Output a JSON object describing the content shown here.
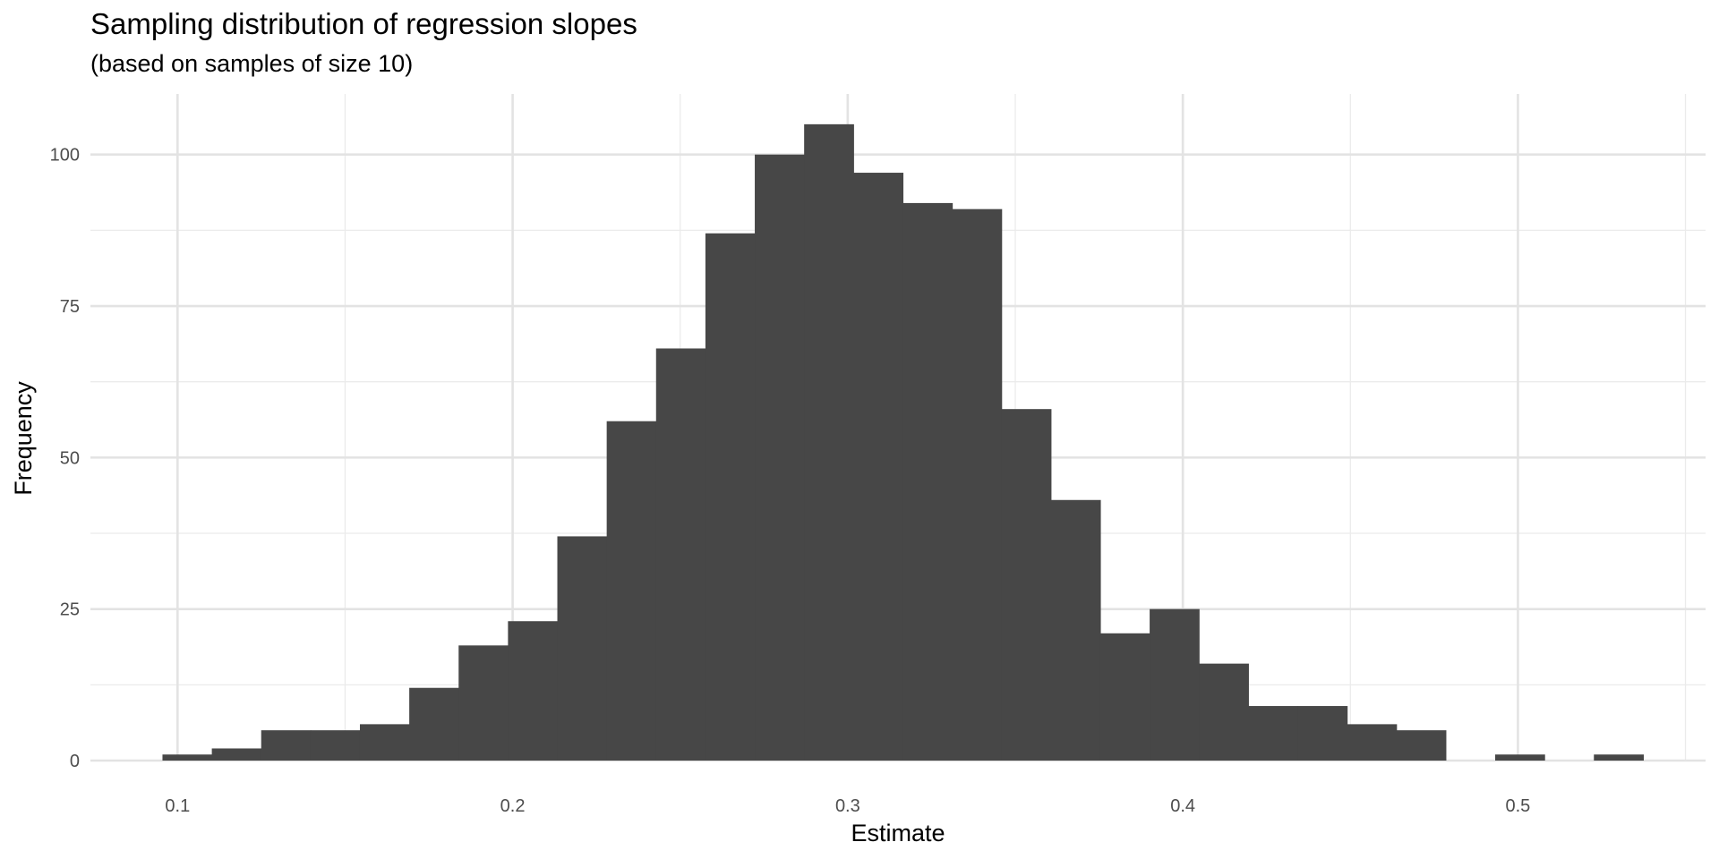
{
  "chart_data": {
    "type": "bar",
    "title": "Sampling distribution of regression slopes",
    "subtitle": "(based on samples of size 10)",
    "xlabel": "Estimate",
    "ylabel": "Frequency",
    "xlim": [
      0.074,
      0.556
    ],
    "ylim": [
      0,
      110
    ],
    "x_ticks": [
      0.1,
      0.2,
      0.3,
      0.4,
      0.5
    ],
    "x_tick_labels": [
      "0.1",
      "0.2",
      "0.3",
      "0.4",
      "0.5"
    ],
    "y_ticks": [
      0,
      25,
      50,
      75,
      100
    ],
    "y_tick_labels": [
      "0",
      "25",
      "50",
      "75",
      "100"
    ],
    "grid": true,
    "legend": "none",
    "bar_color": "#474747",
    "bin_start": 0.0955,
    "bin_width": 0.01473,
    "values": [
      1,
      2,
      5,
      5,
      6,
      12,
      19,
      23,
      37,
      56,
      68,
      87,
      100,
      105,
      97,
      92,
      91,
      58,
      43,
      21,
      25,
      16,
      9,
      9,
      6,
      5,
      0,
      1,
      0,
      1
    ]
  }
}
